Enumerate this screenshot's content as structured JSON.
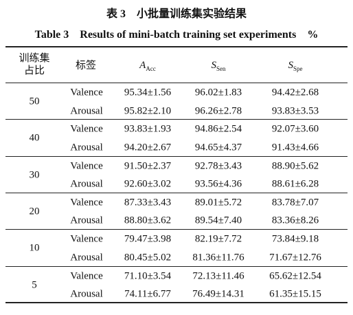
{
  "caption": {
    "cn": "表 3　小批量训练集实验结果",
    "en": "Table 3　Results of mini-batch training set experiments",
    "unit": "%"
  },
  "table": {
    "header": {
      "ratio": "训练集占比",
      "label": "标签",
      "metrics": [
        {
          "main": "A",
          "sub": "Acc"
        },
        {
          "main": "S",
          "sub": "Sen"
        },
        {
          "main": "S",
          "sub": "Spe"
        }
      ]
    },
    "groups": [
      {
        "ratio": "50",
        "rows": [
          [
            "Valence",
            "95.34±1.56",
            "96.02±1.83",
            "94.42±2.68"
          ],
          [
            "Arousal",
            "95.82±2.10",
            "96.26±2.78",
            "93.83±3.53"
          ]
        ]
      },
      {
        "ratio": "40",
        "rows": [
          [
            "Valence",
            "93.83±1.93",
            "94.86±2.54",
            "92.07±3.60"
          ],
          [
            "Arousal",
            "94.20±2.67",
            "94.65±4.37",
            "91.43±4.66"
          ]
        ]
      },
      {
        "ratio": "30",
        "rows": [
          [
            "Valence",
            "91.50±2.37",
            "92.78±3.43",
            "88.90±5.62"
          ],
          [
            "Arousal",
            "92.60±3.02",
            "93.56±4.36",
            "88.61±6.28"
          ]
        ]
      },
      {
        "ratio": "20",
        "rows": [
          [
            "Valence",
            "87.33±3.43",
            "89.01±5.72",
            "83.78±7.07"
          ],
          [
            "Arousal",
            "88.80±3.62",
            "89.54±7.40",
            "83.36±8.26"
          ]
        ]
      },
      {
        "ratio": "10",
        "rows": [
          [
            "Valence",
            "79.47±3.98",
            "82.19±7.72",
            "73.84±9.18"
          ],
          [
            "Arousal",
            "80.45±5.02",
            "81.36±11.76",
            "71.67±12.76"
          ]
        ]
      },
      {
        "ratio": "5",
        "rows": [
          [
            "Valence",
            "71.10±3.54",
            "72.13±11.46",
            "65.62±12.54"
          ],
          [
            "Arousal",
            "74.11±6.77",
            "76.49±14.31",
            "61.35±15.15"
          ]
        ]
      }
    ]
  }
}
